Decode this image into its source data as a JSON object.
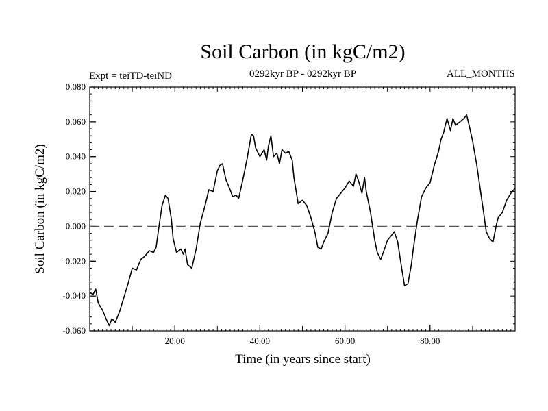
{
  "chart_data": {
    "type": "line",
    "title": "Soil Carbon (in kgC/m2)",
    "subtitle_left": "Expt = teiTD-teiND",
    "subtitle_center": "0292kyr BP - 0292kyr BP",
    "subtitle_right": "ALL_MONTHS",
    "xlabel": "Time (in years since start)",
    "ylabel": "Soil Carbon (in kgC/m2)",
    "xlim": [
      0,
      100
    ],
    "ylim": [
      -0.06,
      0.08
    ],
    "x_tick_values": [
      20,
      40,
      60,
      80
    ],
    "x_tick_labels": [
      "20.00",
      "40.00",
      "60.00",
      "80.00"
    ],
    "y_tick_values": [
      -0.06,
      -0.04,
      -0.02,
      0.0,
      0.02,
      0.04,
      0.06,
      0.08
    ],
    "y_tick_labels": [
      "-0.060",
      "-0.040",
      "-0.020",
      "0.000",
      "0.020",
      "0.040",
      "0.060",
      "0.080"
    ],
    "zero_line": {
      "value": 0.0,
      "style": "dashed"
    },
    "series": [
      {
        "name": "Soil Carbon",
        "color": "#000000",
        "x": [
          0,
          0.8,
          1.4,
          2,
          3,
          4,
          4.6,
          5.2,
          6,
          7,
          8,
          9,
          10,
          11,
          12,
          13,
          14,
          15,
          15.6,
          16.4,
          17,
          17.8,
          18.4,
          19.2,
          19.6,
          20.4,
          21.4,
          22,
          22.4,
          23,
          24,
          25,
          26,
          27,
          28,
          29,
          30,
          30.6,
          31.2,
          32,
          33,
          33.6,
          34.4,
          35,
          36,
          37,
          38,
          38.5,
          39,
          40,
          41,
          41.6,
          42,
          42.6,
          43.2,
          44,
          44.6,
          45.2,
          46,
          46.8,
          47.6,
          48,
          49,
          50,
          51,
          52,
          53,
          53.6,
          54.4,
          55,
          56,
          57,
          58,
          59,
          60,
          61,
          62,
          62.6,
          63.2,
          64,
          64.6,
          65,
          66,
          67,
          67.6,
          68.4,
          69,
          70,
          71,
          71.6,
          72.4,
          73.2,
          74,
          74.8,
          75.6,
          76,
          77,
          78,
          79,
          80,
          81,
          82,
          82.6,
          83.2,
          84,
          84.8,
          85.4,
          86,
          87,
          88,
          88.6,
          89.2,
          90,
          91,
          92,
          92.6,
          93.2,
          94,
          94.8,
          95.6,
          96,
          97,
          98,
          99,
          100
        ],
        "values": [
          -0.038,
          -0.039,
          -0.036,
          -0.044,
          -0.048,
          -0.054,
          -0.057,
          -0.053,
          -0.055,
          -0.049,
          -0.041,
          -0.033,
          -0.024,
          -0.025,
          -0.019,
          -0.017,
          -0.014,
          -0.015,
          -0.012,
          0.002,
          0.012,
          0.018,
          0.016,
          0.004,
          -0.007,
          -0.015,
          -0.013,
          -0.016,
          -0.013,
          -0.022,
          -0.024,
          -0.013,
          0.002,
          0.011,
          0.021,
          0.02,
          0.032,
          0.035,
          0.036,
          0.027,
          0.021,
          0.017,
          0.018,
          0.016,
          0.027,
          0.039,
          0.053,
          0.052,
          0.045,
          0.04,
          0.044,
          0.038,
          0.046,
          0.052,
          0.04,
          0.042,
          0.036,
          0.044,
          0.042,
          0.043,
          0.038,
          0.028,
          0.013,
          0.015,
          0.012,
          0.005,
          -0.004,
          -0.012,
          -0.013,
          -0.009,
          -0.004,
          0.008,
          0.016,
          0.019,
          0.022,
          0.026,
          0.023,
          0.03,
          0.026,
          0.019,
          0.028,
          0.02,
          0.008,
          -0.008,
          -0.015,
          -0.019,
          -0.015,
          -0.008,
          -0.005,
          -0.003,
          -0.009,
          -0.022,
          -0.034,
          -0.033,
          -0.022,
          -0.014,
          0.003,
          0.017,
          0.022,
          0.025,
          0.035,
          0.043,
          0.05,
          0.054,
          0.062,
          0.055,
          0.062,
          0.058,
          0.06,
          0.062,
          0.064,
          0.058,
          0.049,
          0.035,
          0.018,
          0.008,
          -0.003,
          -0.007,
          -0.009,
          0.001,
          0.005,
          0.008,
          0.015,
          0.019,
          0.022
        ]
      }
    ]
  }
}
